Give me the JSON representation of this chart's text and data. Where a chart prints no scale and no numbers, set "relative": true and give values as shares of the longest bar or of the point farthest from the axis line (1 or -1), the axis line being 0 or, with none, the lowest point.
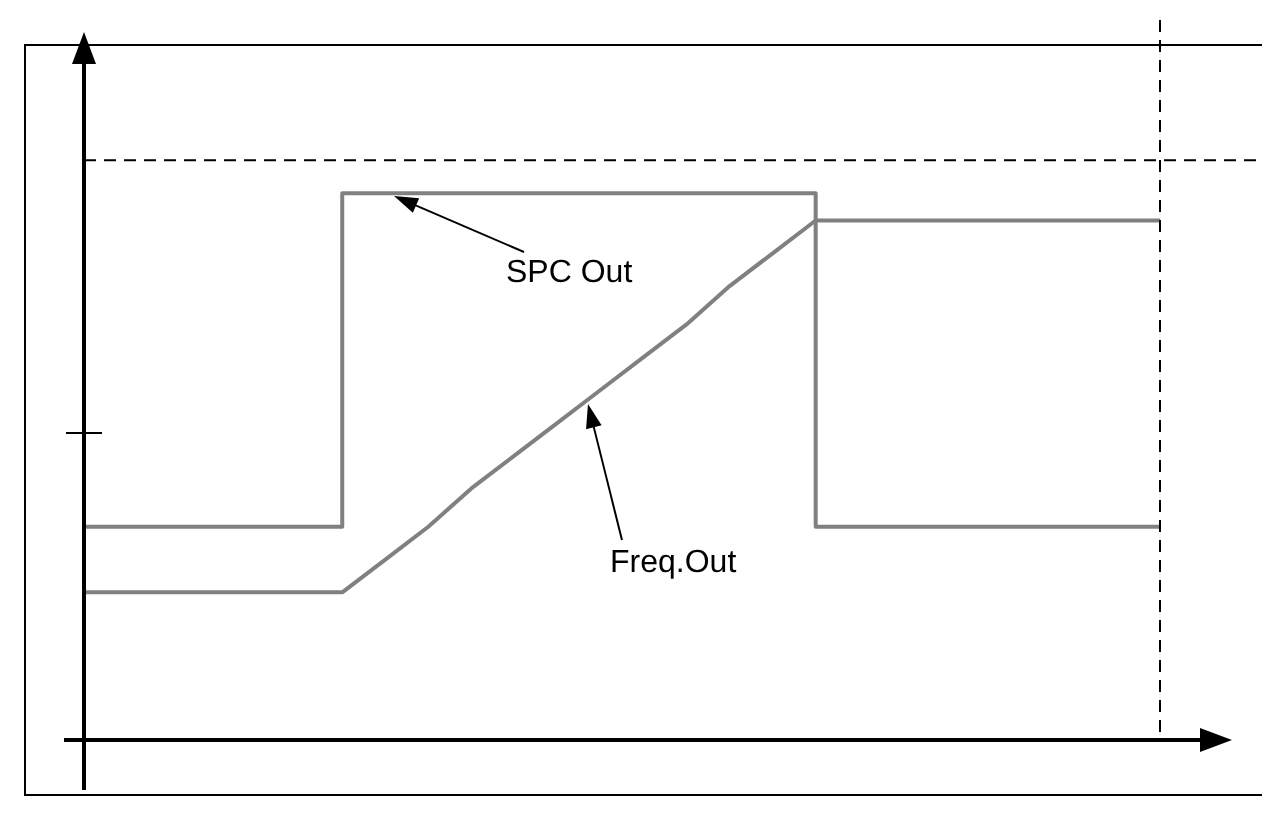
{
  "chart_data": {
    "type": "line",
    "relative": true,
    "marker": "none",
    "line_style": "solid",
    "legend": false,
    "categories": [
      null,
      null,
      null,
      null,
      null,
      null,
      null,
      null,
      null,
      null,
      null,
      null,
      null,
      null,
      null,
      null,
      null,
      null,
      null,
      null,
      null,
      null,
      null,
      null,
      null,
      null
    ],
    "series": [
      {
        "type": "step",
        "color": "#808080",
        "values": [
          0.39,
          0.39,
          0.39,
          0.39,
          0.39,
          0.39,
          1,
          1,
          1,
          1,
          1,
          1,
          1,
          1,
          1,
          1,
          1,
          0.39,
          0.39,
          0.39,
          0.39,
          0.39,
          0.39,
          0.39,
          0.39,
          0.39
        ]
      },
      {
        "color": "#808080",
        "values": [
          0.27,
          0.27,
          0.27,
          0.27,
          0.27,
          0.27,
          0.27,
          0.33,
          0.39,
          0.46,
          0.52,
          0.58,
          0.64,
          0.7,
          0.76,
          0.83,
          0.89,
          0.95,
          0.95,
          0.95,
          0.95,
          0.95,
          0.95,
          0.95,
          0.95,
          0.95
        ]
      }
    ],
    "ref_lines": [
      {
        "axis": "y",
        "value": 1.06,
        "color": "#000000",
        "line_style": "dashed"
      }
    ],
    "annotations": [
      "SPC Out",
      "Freq.Out"
    ]
  }
}
